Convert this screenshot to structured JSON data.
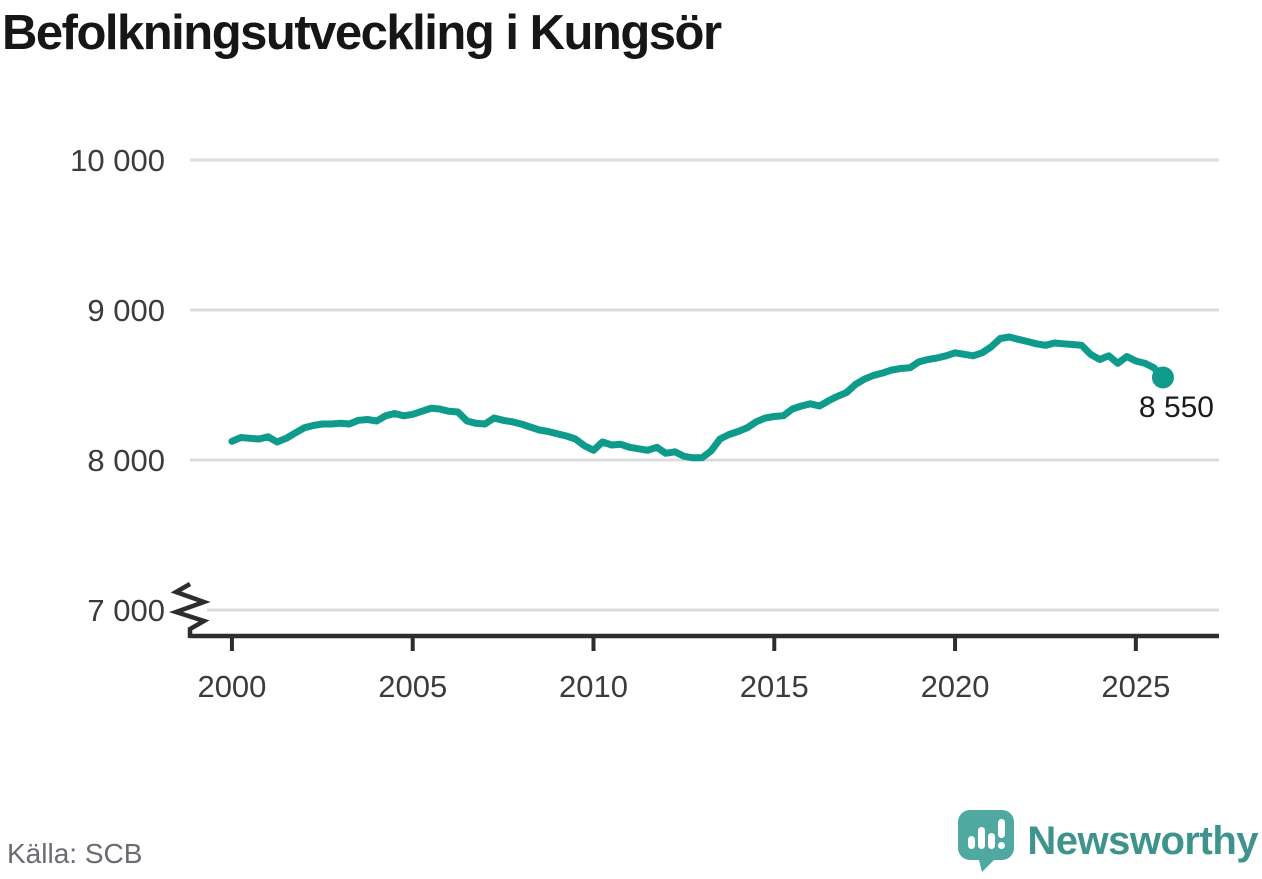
{
  "title": "Befolkningsutveckling i Kungsör",
  "source": {
    "label": "Källa: SCB"
  },
  "branding": {
    "name": "Newsworthy",
    "icon": "newsworthy-logo-icon",
    "text_color": "#3e948d",
    "icon_color": "#4fa9a1"
  },
  "chart_data": {
    "type": "line",
    "title": "Befolkningsutveckling i Kungsör",
    "xlabel": "",
    "ylabel": "",
    "grid": "horizontal-only",
    "legend": "none",
    "axis_break_below_first_ytick": true,
    "line_color": "#0f9b8c",
    "grid_color": "#dcdcdc",
    "axis_color": "#2d2d2d",
    "tick_label_color": "#3c3c3c",
    "annotation_color": "#1b1b1b",
    "xlim": [
      1998.84,
      2027.3
    ],
    "ylim": [
      7000,
      10000
    ],
    "xticks": [
      {
        "value": 2000,
        "label": "2000"
      },
      {
        "value": 2005,
        "label": "2005"
      },
      {
        "value": 2010,
        "label": "2010"
      },
      {
        "value": 2015,
        "label": "2015"
      },
      {
        "value": 2020,
        "label": "2020"
      },
      {
        "value": 2025,
        "label": "2025"
      }
    ],
    "yticks": [
      {
        "value": 7000,
        "label": "7 000"
      },
      {
        "value": 8000,
        "label": "8 000"
      },
      {
        "value": 9000,
        "label": "9 000"
      },
      {
        "value": 10000,
        "label": "10 000"
      }
    ],
    "x_start": 2000.0,
    "x_step": 0.25,
    "series": [
      {
        "name": "Befolkning i Kungsör (kvartalsvis, uppskattad)",
        "values": [
          8125,
          8150,
          8145,
          8140,
          8155,
          8120,
          8145,
          8180,
          8215,
          8230,
          8240,
          8240,
          8245,
          8240,
          8265,
          8270,
          8260,
          8295,
          8310,
          8295,
          8305,
          8325,
          8345,
          8340,
          8325,
          8320,
          8260,
          8245,
          8240,
          8280,
          8265,
          8255,
          8240,
          8220,
          8200,
          8190,
          8175,
          8160,
          8140,
          8095,
          8065,
          8120,
          8100,
          8105,
          8085,
          8075,
          8065,
          8085,
          8045,
          8055,
          8025,
          8015,
          8015,
          8060,
          8140,
          8170,
          8190,
          8215,
          8255,
          8280,
          8290,
          8295,
          8340,
          8360,
          8375,
          8360,
          8395,
          8425,
          8450,
          8505,
          8540,
          8565,
          8580,
          8600,
          8610,
          8615,
          8655,
          8670,
          8680,
          8695,
          8715,
          8705,
          8695,
          8715,
          8755,
          8810,
          8820,
          8805,
          8790,
          8775,
          8765,
          8780,
          8775,
          8770,
          8765,
          8705,
          8670,
          8695,
          8645,
          8690,
          8660,
          8645,
          8615,
          8550
        ]
      }
    ],
    "end_value": 8550,
    "end_label": "8 550"
  }
}
